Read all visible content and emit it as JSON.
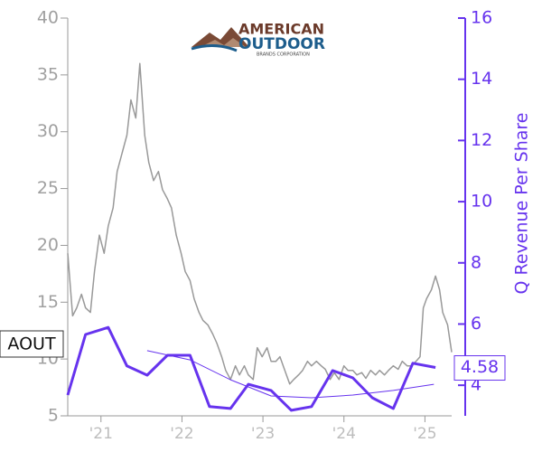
{
  "chart_data": {
    "type": "line",
    "logo": {
      "line1": "AMERICAN",
      "line2": "OUTDOOR",
      "line3": "BRANDS CORPORATION"
    },
    "ticker_label": "AOUT",
    "y2_label": "Q Revenue Per Share",
    "xlim": [
      2020.59,
      2025.33
    ],
    "xticks": [
      {
        "value": 2021,
        "label": "'21"
      },
      {
        "value": 2022,
        "label": "'22"
      },
      {
        "value": 2023,
        "label": "'23"
      },
      {
        "value": 2024,
        "label": "'24"
      },
      {
        "value": 2025,
        "label": "'25"
      }
    ],
    "ylim": [
      5,
      40
    ],
    "yticks": [
      5,
      10,
      15,
      20,
      25,
      30,
      35,
      40
    ],
    "y2lim": [
      3,
      16
    ],
    "y2ticks": [
      4,
      6,
      8,
      10,
      12,
      14,
      16
    ],
    "series": [
      {
        "name": "Price",
        "color": "#999999",
        "axis": "y",
        "x": [
          2020.59,
          2020.65,
          2020.7,
          2020.76,
          2020.81,
          2020.87,
          2020.92,
          2020.98,
          2021.04,
          2021.09,
          2021.15,
          2021.2,
          2021.26,
          2021.32,
          2021.37,
          2021.43,
          2021.48,
          2021.54,
          2021.59,
          2021.65,
          2021.71,
          2021.76,
          2021.82,
          2021.87,
          2021.93,
          2021.99,
          2022.04,
          2022.1,
          2022.15,
          2022.21,
          2022.26,
          2022.32,
          2022.38,
          2022.43,
          2022.49,
          2022.54,
          2022.6,
          2022.66,
          2022.71,
          2022.77,
          2022.82,
          2022.88,
          2022.93,
          2022.99,
          2023.05,
          2023.1,
          2023.16,
          2023.21,
          2023.27,
          2023.33,
          2023.38,
          2023.44,
          2023.49,
          2023.55,
          2023.6,
          2023.66,
          2023.72,
          2023.77,
          2023.83,
          2023.88,
          2023.94,
          2024.0,
          2024.05,
          2024.11,
          2024.16,
          2024.22,
          2024.27,
          2024.33,
          2024.39,
          2024.44,
          2024.5,
          2024.55,
          2024.61,
          2024.67,
          2024.72,
          2024.78,
          2024.83,
          2024.89,
          2024.94,
          2024.98,
          2025.02,
          2025.08,
          2025.13,
          2025.18,
          2025.22,
          2025.28,
          2025.33
        ],
        "values": [
          19.3,
          13.8,
          14.5,
          15.7,
          14.5,
          14.1,
          17.7,
          20.9,
          19.3,
          21.7,
          23.3,
          26.5,
          28.1,
          29.7,
          32.8,
          31.2,
          36.0,
          29.7,
          27.3,
          25.7,
          26.5,
          24.9,
          24.1,
          23.3,
          20.9,
          19.3,
          17.7,
          16.9,
          15.3,
          14.1,
          13.4,
          13.0,
          12.2,
          11.4,
          10.2,
          9.0,
          8.2,
          9.4,
          8.6,
          9.4,
          8.6,
          8.2,
          11.0,
          10.2,
          11.0,
          9.8,
          9.8,
          10.2,
          9.0,
          7.8,
          8.2,
          8.6,
          9.0,
          9.8,
          9.4,
          9.8,
          9.4,
          9.1,
          8.2,
          8.8,
          8.2,
          9.4,
          9.0,
          9.0,
          8.6,
          8.8,
          8.3,
          9.0,
          8.6,
          9.0,
          8.6,
          9.0,
          9.4,
          9.1,
          9.8,
          9.4,
          9.4,
          9.8,
          10.2,
          14.5,
          15.3,
          16.1,
          17.3,
          16.1,
          14.1,
          13.0,
          10.6
        ]
      },
      {
        "name": "Q Revenue Per Share",
        "color": "#6633ee",
        "axis": "y2",
        "x": [
          2020.59,
          2020.81,
          2021.09,
          2021.32,
          2021.57,
          2021.82,
          2022.1,
          2022.34,
          2022.6,
          2022.82,
          2023.1,
          2023.35,
          2023.6,
          2023.86,
          2024.11,
          2024.35,
          2024.61,
          2024.85,
          2025.13
        ],
        "values": [
          3.68,
          5.66,
          5.89,
          4.63,
          4.33,
          4.98,
          4.98,
          3.3,
          3.24,
          4.03,
          3.83,
          3.18,
          3.3,
          4.48,
          4.24,
          3.59,
          3.24,
          4.72,
          4.58
        ]
      },
      {
        "name": "Trend",
        "color": "#6633ee",
        "axis": "y2",
        "x": [
          2021.57,
          2022.1,
          2022.6,
          2023.1,
          2023.6,
          2024.11,
          2024.61,
          2025.11
        ],
        "values": [
          5.13,
          4.83,
          4.18,
          3.65,
          3.59,
          3.68,
          3.83,
          4.03
        ]
      }
    ]
  }
}
